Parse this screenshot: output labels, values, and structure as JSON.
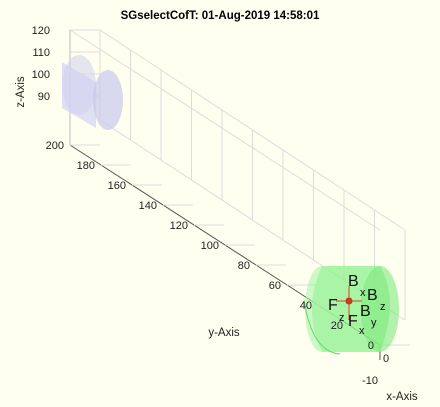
{
  "chart_data": {
    "type": "3d-scene",
    "title": "SGselectCofT: 01-Aug-2019 14:58:01",
    "xlabel": "x-Axis",
    "ylabel": "y-Axis",
    "zlabel": "z-Axis",
    "x_ticks": [
      "-10",
      "0"
    ],
    "y_ticks": [
      "0",
      "20",
      "40",
      "60",
      "80",
      "100",
      "120",
      "140",
      "160",
      "180",
      "200"
    ],
    "z_ticks": [
      "90",
      "100",
      "110",
      "120"
    ],
    "grid": true,
    "objects": [
      {
        "name": "ghost-cylinder",
        "color": "#c8c8f0",
        "y_range": [
          170,
          215
        ]
      },
      {
        "name": "selected-cylinder",
        "color": "#78f078",
        "y_range": [
          0,
          30
        ]
      }
    ],
    "frame_labels": [
      {
        "main": "B",
        "sub": "x"
      },
      {
        "main": "B",
        "sub": "z"
      },
      {
        "main": "B",
        "sub": "y"
      },
      {
        "main": "F",
        "sub": "z"
      },
      {
        "main": "F",
        "sub": "x"
      }
    ]
  }
}
